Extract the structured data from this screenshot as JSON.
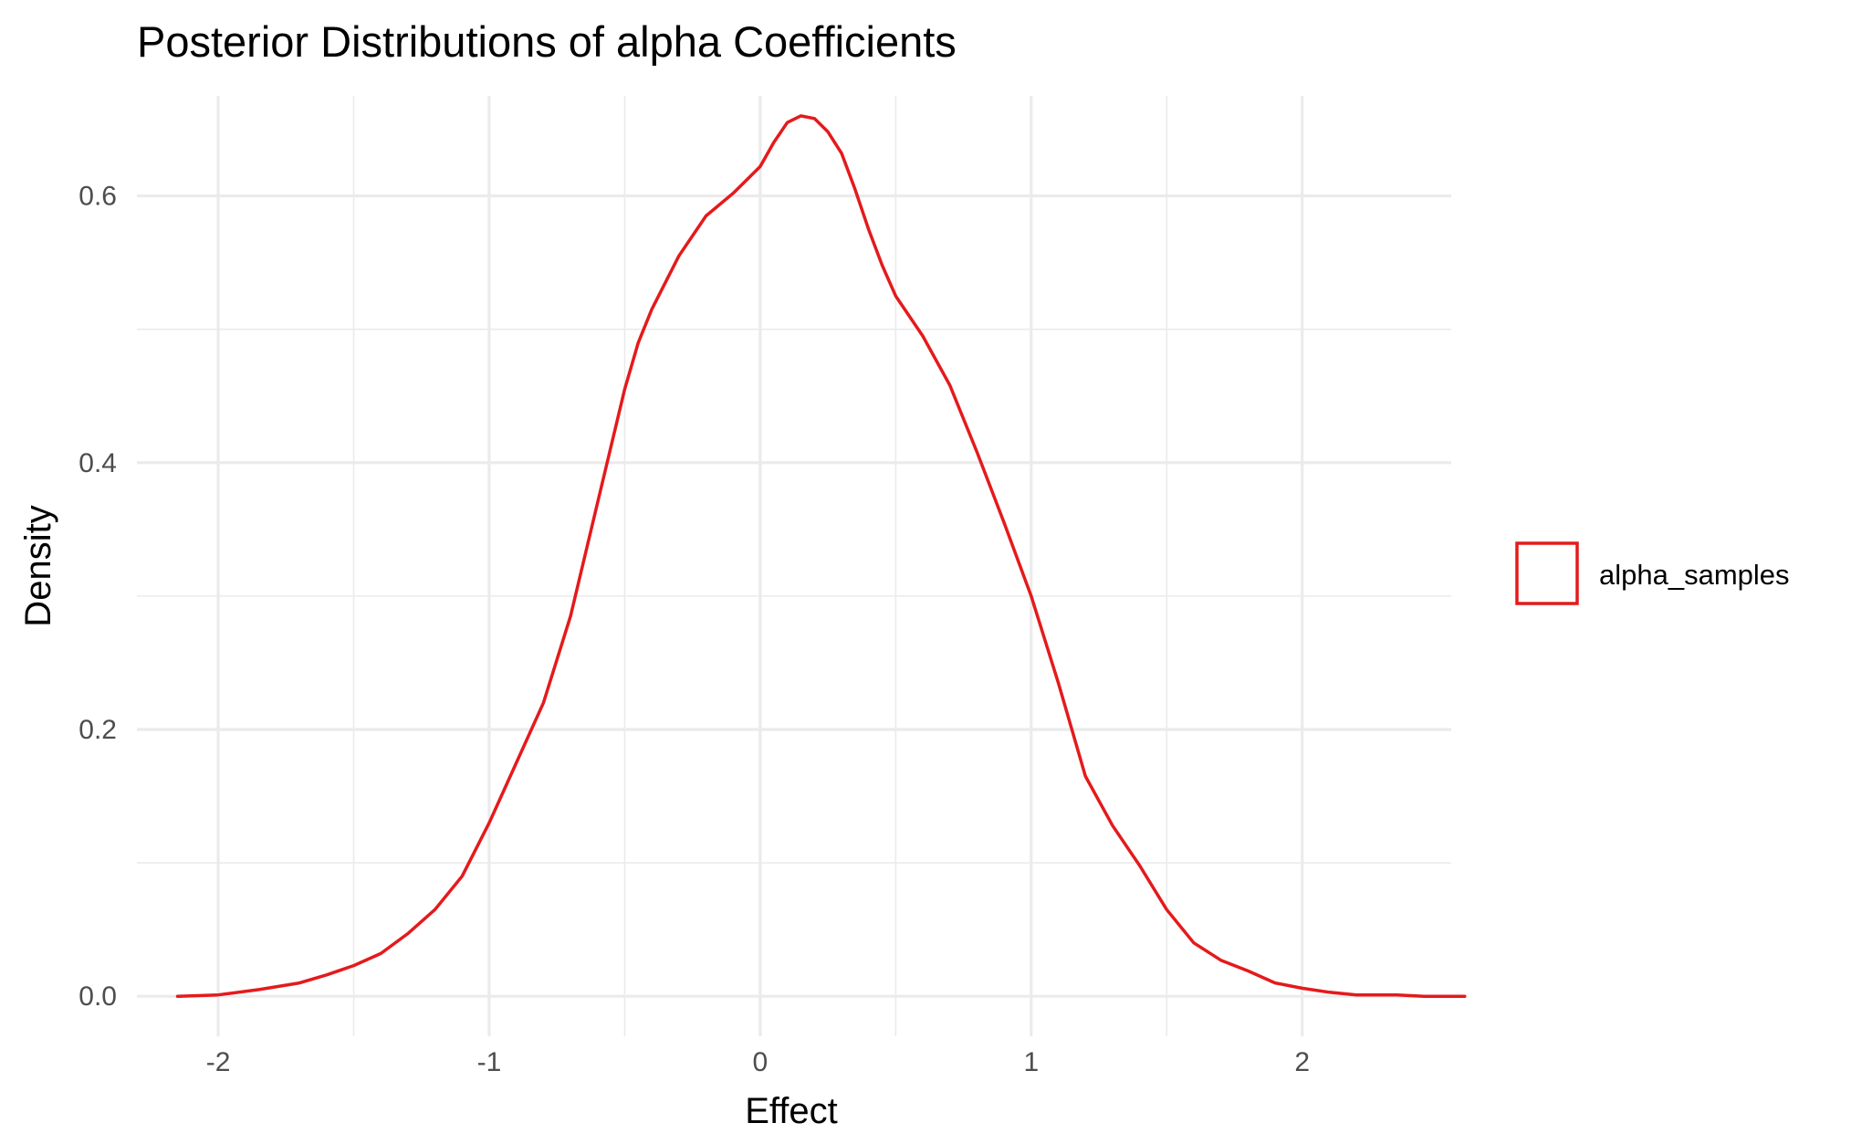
{
  "chart_data": {
    "type": "line",
    "title": "Posterior Distributions of alpha Coefficients",
    "xlabel": "Effect",
    "ylabel": "Density",
    "xlim": [
      -2.3,
      2.55
    ],
    "ylim": [
      -0.03,
      0.675
    ],
    "x_ticks": [
      -2,
      -1,
      0,
      1,
      2
    ],
    "x_tick_labels": [
      "-2",
      "-1",
      "0",
      "1",
      "2"
    ],
    "y_ticks": [
      0.0,
      0.2,
      0.4,
      0.6
    ],
    "y_tick_labels": [
      "0.0",
      "0.2",
      "0.4",
      "0.6"
    ],
    "x_minor_ticks": [
      -1.5,
      -0.5,
      0.5,
      1.5
    ],
    "y_minor_ticks": [
      0.1,
      0.3,
      0.5
    ],
    "grid": true,
    "legend_position": "right",
    "series": [
      {
        "name": "alpha_samples",
        "color": "#e41a1c",
        "points": [
          [
            -2.15,
            0.0
          ],
          [
            -2.0,
            0.001
          ],
          [
            -1.85,
            0.005
          ],
          [
            -1.7,
            0.01
          ],
          [
            -1.6,
            0.016
          ],
          [
            -1.5,
            0.023
          ],
          [
            -1.4,
            0.032
          ],
          [
            -1.3,
            0.047
          ],
          [
            -1.2,
            0.065
          ],
          [
            -1.1,
            0.09
          ],
          [
            -1.0,
            0.13
          ],
          [
            -0.9,
            0.175
          ],
          [
            -0.8,
            0.22
          ],
          [
            -0.7,
            0.285
          ],
          [
            -0.6,
            0.37
          ],
          [
            -0.5,
            0.455
          ],
          [
            -0.45,
            0.49
          ],
          [
            -0.4,
            0.515
          ],
          [
            -0.3,
            0.555
          ],
          [
            -0.2,
            0.585
          ],
          [
            -0.1,
            0.602
          ],
          [
            0.0,
            0.622
          ],
          [
            0.05,
            0.64
          ],
          [
            0.1,
            0.655
          ],
          [
            0.15,
            0.66
          ],
          [
            0.2,
            0.658
          ],
          [
            0.25,
            0.648
          ],
          [
            0.3,
            0.632
          ],
          [
            0.35,
            0.605
          ],
          [
            0.4,
            0.575
          ],
          [
            0.45,
            0.548
          ],
          [
            0.5,
            0.525
          ],
          [
            0.6,
            0.495
          ],
          [
            0.7,
            0.458
          ],
          [
            0.8,
            0.408
          ],
          [
            0.9,
            0.355
          ],
          [
            1.0,
            0.3
          ],
          [
            1.1,
            0.235
          ],
          [
            1.2,
            0.165
          ],
          [
            1.3,
            0.128
          ],
          [
            1.4,
            0.098
          ],
          [
            1.5,
            0.065
          ],
          [
            1.6,
            0.04
          ],
          [
            1.7,
            0.027
          ],
          [
            1.8,
            0.019
          ],
          [
            1.9,
            0.01
          ],
          [
            2.0,
            0.006
          ],
          [
            2.1,
            0.003
          ],
          [
            2.2,
            0.001
          ],
          [
            2.35,
            0.001
          ],
          [
            2.45,
            0.0
          ],
          [
            2.6,
            0.0
          ]
        ]
      }
    ]
  }
}
